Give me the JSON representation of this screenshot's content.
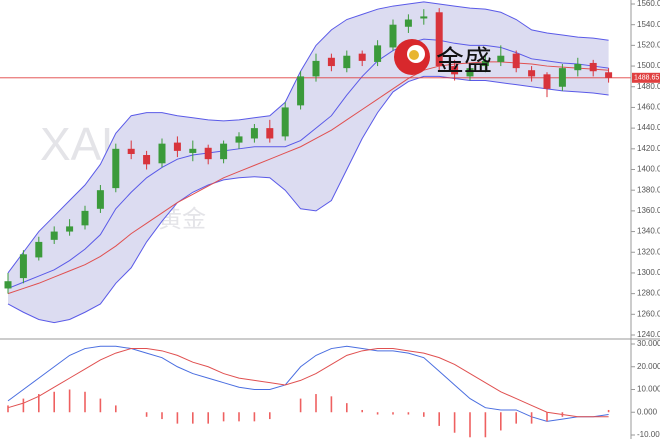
{
  "chart_data": [
    {
      "type": "candlestick",
      "watermark": [
        "XAUUSD",
        "现货黄金"
      ],
      "logo_text": "金盛",
      "up_color": "#3b9a3b",
      "down_color": "#d8343c",
      "open": [
        1285,
        1295,
        1315,
        1332,
        1340,
        1346,
        1362,
        1382,
        1420,
        1414,
        1406,
        1426,
        1416,
        1421,
        1410,
        1426,
        1430,
        1440,
        1432,
        1462,
        1490,
        1508,
        1498,
        1512,
        1504,
        1518,
        1538,
        1546,
        1552,
        1500,
        1490,
        1500,
        1504,
        1512,
        1496,
        1492,
        1480,
        1496,
        1503,
        1494
      ],
      "high": [
        1300,
        1322,
        1335,
        1345,
        1352,
        1365,
        1385,
        1425,
        1428,
        1418,
        1430,
        1432,
        1428,
        1424,
        1428,
        1436,
        1444,
        1448,
        1465,
        1495,
        1512,
        1512,
        1515,
        1515,
        1525,
        1545,
        1550,
        1555,
        1556,
        1506,
        1502,
        1510,
        1520,
        1515,
        1500,
        1494,
        1502,
        1508,
        1506,
        1498
      ],
      "low": [
        1280,
        1290,
        1312,
        1328,
        1336,
        1342,
        1358,
        1378,
        1410,
        1400,
        1402,
        1412,
        1408,
        1405,
        1406,
        1420,
        1426,
        1426,
        1428,
        1458,
        1485,
        1495,
        1494,
        1500,
        1500,
        1515,
        1532,
        1540,
        1495,
        1486,
        1486,
        1494,
        1500,
        1494,
        1485,
        1470,
        1476,
        1490,
        1490,
        1484
      ],
      "close": [
        1292,
        1318,
        1330,
        1340,
        1345,
        1360,
        1380,
        1420,
        1415,
        1405,
        1425,
        1418,
        1420,
        1410,
        1425,
        1432,
        1440,
        1430,
        1460,
        1490,
        1505,
        1500,
        1510,
        1505,
        1520,
        1540,
        1545,
        1548,
        1500,
        1492,
        1498,
        1505,
        1510,
        1498,
        1490,
        1478,
        1498,
        1502,
        1495,
        1488.65
      ],
      "band_fill": "#dcdcf1",
      "overlays": [
        {
          "color": "#5a5ae8",
          "values": [
            1300,
            1320,
            1340,
            1355,
            1370,
            1385,
            1405,
            1435,
            1452,
            1455,
            1455,
            1452,
            1450,
            1448,
            1447,
            1448,
            1450,
            1452,
            1465,
            1495,
            1520,
            1535,
            1545,
            1550,
            1555,
            1558,
            1560,
            1562,
            1560,
            1558,
            1556,
            1555,
            1552,
            1545,
            1535,
            1532,
            1530,
            1528,
            1527,
            1525
          ]
        },
        {
          "color": "#5a5ae8",
          "values": [
            1270,
            1262,
            1255,
            1252,
            1255,
            1262,
            1270,
            1290,
            1305,
            1330,
            1350,
            1368,
            1378,
            1385,
            1390,
            1392,
            1393,
            1392,
            1380,
            1362,
            1360,
            1370,
            1400,
            1430,
            1455,
            1475,
            1485,
            1490,
            1490,
            1488,
            1486,
            1486,
            1484,
            1482,
            1480,
            1478,
            1476,
            1475,
            1474,
            1472
          ]
        },
        {
          "color": "#5a5ae8",
          "values": [
            1285,
            1291,
            1297,
            1303,
            1312,
            1323,
            1337,
            1362,
            1378,
            1392,
            1402,
            1410,
            1414,
            1416,
            1418,
            1420,
            1422,
            1422,
            1422,
            1428,
            1440,
            1452,
            1472,
            1490,
            1505,
            1515,
            1522,
            1526,
            1525,
            1522,
            1520,
            1520,
            1518,
            1513,
            1507,
            1505,
            1503,
            1502,
            1500,
            1498
          ]
        },
        {
          "color": "#e05050",
          "values": [
            1280,
            1285,
            1290,
            1296,
            1302,
            1308,
            1316,
            1326,
            1338,
            1348,
            1358,
            1368,
            1376,
            1384,
            1392,
            1398,
            1404,
            1410,
            1416,
            1422,
            1430,
            1438,
            1448,
            1458,
            1468,
            1478,
            1488,
            1496,
            1500,
            1502,
            1503,
            1504,
            1504,
            1503,
            1502,
            1500,
            1499,
            1498,
            1497,
            1496
          ]
        }
      ],
      "last_price": 1488.65,
      "last_price_color": "#e04040",
      "ylim": [
        1240,
        1560
      ],
      "yticks": [
        {
          "value": 1240,
          "label": "1240.0"
        },
        {
          "value": 1260,
          "label": "1260.0"
        },
        {
          "value": 1280,
          "label": "1280.0"
        },
        {
          "value": 1300,
          "label": "1300.0"
        },
        {
          "value": 1320,
          "label": "1320.0"
        },
        {
          "value": 1340,
          "label": "1340.0"
        },
        {
          "value": 1360,
          "label": "1360.0"
        },
        {
          "value": 1380,
          "label": "1380.0"
        },
        {
          "value": 1400,
          "label": "1400.0"
        },
        {
          "value": 1420,
          "label": "1420.0"
        },
        {
          "value": 1440,
          "label": "1440.0"
        },
        {
          "value": 1460,
          "label": "1460.0"
        },
        {
          "value": 1480,
          "label": "1480.0"
        },
        {
          "value": 1500,
          "label": "1500.0"
        },
        {
          "value": 1520,
          "label": "1520.0"
        },
        {
          "value": 1540,
          "label": "1540.0"
        },
        {
          "value": 1560,
          "label": "1560.0"
        }
      ]
    },
    {
      "type": "line",
      "series": [
        {
          "color": "#4a6ee0",
          "values": [
            5,
            10,
            15,
            20,
            25,
            28,
            29,
            29,
            28,
            26,
            24,
            20,
            17,
            15,
            13,
            11,
            10,
            10,
            12,
            20,
            25,
            28,
            29,
            28,
            27,
            27,
            26,
            24,
            18,
            12,
            6,
            2,
            1,
            1,
            -2,
            -4,
            -3,
            -2,
            -2,
            -1
          ]
        },
        {
          "color": "#e05050",
          "values": [
            2,
            4,
            7,
            11,
            15,
            19,
            23,
            26,
            28,
            28,
            27,
            25,
            22,
            20,
            17,
            15,
            14,
            13,
            12,
            14,
            17,
            21,
            25,
            27,
            28,
            28,
            27,
            26,
            24,
            21,
            17,
            13,
            9,
            6,
            3,
            0,
            -1,
            -2,
            -2,
            -2
          ]
        },
        {
          "color": "#ee6060",
          "style": "bar",
          "values": [
            3,
            6,
            8,
            9,
            10,
            9,
            6,
            3,
            0,
            -2,
            -3,
            -5,
            -5,
            -5,
            -4,
            -4,
            -4,
            -3,
            0,
            6,
            8,
            7,
            4,
            1,
            -1,
            -1,
            -1,
            -2,
            -6,
            -9,
            -11,
            -11,
            -8,
            -5,
            -5,
            -4,
            -2,
            0,
            0,
            1
          ]
        }
      ],
      "ylim": [
        -10,
        30
      ],
      "yticks": [
        {
          "value": 30,
          "label": "30.000"
        },
        {
          "value": 20,
          "label": "20.000"
        },
        {
          "value": 10,
          "label": "10.000"
        },
        {
          "value": 0,
          "label": "0.000"
        },
        {
          "value": -10,
          "label": "-10.000"
        }
      ]
    }
  ]
}
